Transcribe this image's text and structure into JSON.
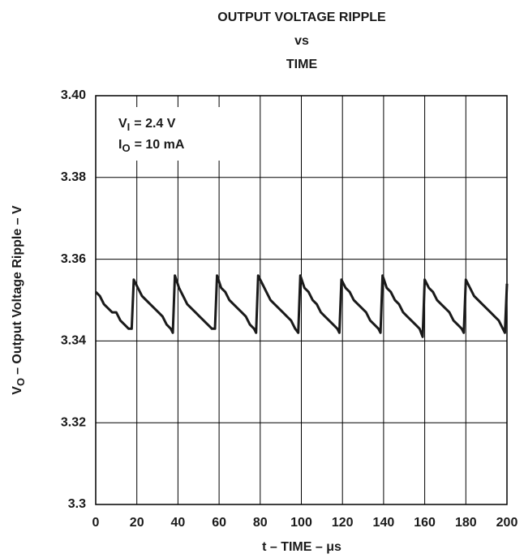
{
  "chart_data": {
    "type": "line",
    "title": [
      "OUTPUT VOLTAGE RIPPLE",
      "vs",
      "TIME"
    ],
    "xlabel": "t – TIME – μs",
    "ylabel": [
      "V",
      "O",
      "– Output Voltage Ripple – V"
    ],
    "annotations": [
      [
        "V",
        "I",
        "= 2.4 V"
      ],
      [
        "I",
        "O",
        "= 10 mA"
      ]
    ],
    "color": "#1a1a1a",
    "grid": true,
    "xlim": [
      0,
      200
    ],
    "xticks": [
      0,
      20,
      40,
      60,
      80,
      100,
      120,
      140,
      160,
      180,
      200
    ],
    "ylim": [
      3.3,
      3.4
    ],
    "yticks": [
      3.3,
      3.32,
      3.34,
      3.36,
      3.38,
      {
        "value": 3.4,
        "label": "3.40"
      }
    ],
    "x": [
      0,
      2,
      4,
      6,
      8,
      10,
      12,
      14,
      16,
      17.5,
      18.5,
      20.5,
      22.5,
      24.5,
      26.5,
      28.5,
      30.5,
      32.5,
      34.5,
      36.5,
      37.5,
      38.5,
      40.5,
      42.5,
      44.5,
      46.5,
      48.5,
      50.5,
      52.5,
      54.5,
      56.5,
      58,
      59,
      61,
      63,
      65,
      67,
      69,
      71,
      73,
      75,
      77,
      78,
      79,
      81,
      83,
      85,
      87,
      89,
      91,
      93,
      95,
      97,
      98.5,
      99.5,
      101.5,
      103.5,
      105.5,
      107.5,
      109.5,
      111.5,
      113.5,
      115.5,
      117.5,
      118.5,
      119.5,
      121.5,
      123.5,
      125.5,
      127.5,
      129.5,
      131.5,
      133.5,
      135.5,
      137.5,
      138.5,
      139.5,
      141.5,
      143.5,
      145.5,
      147.5,
      149.5,
      151.5,
      153.5,
      155.5,
      157.5,
      159,
      160,
      162,
      164,
      166,
      168,
      170,
      172,
      174,
      176,
      178,
      179,
      180,
      182,
      184,
      186,
      188,
      190,
      192,
      194,
      196,
      198,
      199,
      200
    ],
    "values": [
      3.352,
      3.351,
      3.349,
      3.348,
      3.347,
      3.347,
      3.345,
      3.344,
      3.343,
      3.343,
      3.355,
      3.353,
      3.351,
      3.35,
      3.349,
      3.348,
      3.347,
      3.346,
      3.344,
      3.343,
      3.342,
      3.356,
      3.353,
      3.351,
      3.349,
      3.348,
      3.347,
      3.346,
      3.345,
      3.344,
      3.343,
      3.343,
      3.356,
      3.353,
      3.352,
      3.35,
      3.349,
      3.348,
      3.347,
      3.346,
      3.344,
      3.343,
      3.342,
      3.356,
      3.354,
      3.352,
      3.35,
      3.349,
      3.348,
      3.347,
      3.346,
      3.345,
      3.343,
      3.342,
      3.356,
      3.353,
      3.352,
      3.35,
      3.349,
      3.347,
      3.346,
      3.345,
      3.344,
      3.343,
      3.342,
      3.355,
      3.353,
      3.352,
      3.35,
      3.349,
      3.348,
      3.347,
      3.345,
      3.344,
      3.343,
      3.342,
      3.356,
      3.353,
      3.352,
      3.35,
      3.349,
      3.347,
      3.346,
      3.345,
      3.344,
      3.343,
      3.341,
      3.355,
      3.353,
      3.352,
      3.35,
      3.349,
      3.348,
      3.347,
      3.345,
      3.344,
      3.343,
      3.342,
      3.355,
      3.353,
      3.351,
      3.35,
      3.349,
      3.348,
      3.347,
      3.346,
      3.345,
      3.343,
      3.342,
      3.354
    ]
  }
}
